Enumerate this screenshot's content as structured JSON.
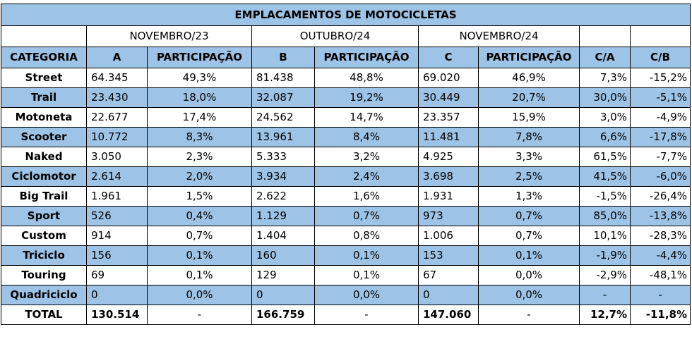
{
  "title": "EMPLACAMENTOS DE MOTOCICLETAS",
  "periods": [
    "NOVEMBRO/23",
    "OUTUBRO/24",
    "NOVEMBRO/24"
  ],
  "columns": [
    "CATEGORIA",
    "A",
    "PARTICIPAÇÃO",
    "B",
    "PARTICIPAÇÃO",
    "C",
    "PARTICIPAÇÃO",
    "C/A",
    "C/B"
  ],
  "rows": [
    {
      "cat": "Street",
      "a": "64.345",
      "pa": "49,3%",
      "b": "81.438",
      "pb": "48,8%",
      "c": "69.020",
      "pc": "46,9%",
      "ca": "7,3%",
      "cb": "-15,2%"
    },
    {
      "cat": "Trail",
      "a": "23.430",
      "pa": "18,0%",
      "b": "32.087",
      "pb": "19,2%",
      "c": "30.449",
      "pc": "20,7%",
      "ca": "30,0%",
      "cb": "-5,1%"
    },
    {
      "cat": "Motoneta",
      "a": "22.677",
      "pa": "17,4%",
      "b": "24.562",
      "pb": "14,7%",
      "c": "23.357",
      "pc": "15,9%",
      "ca": "3,0%",
      "cb": "-4,9%"
    },
    {
      "cat": "Scooter",
      "a": "10.772",
      "pa": "8,3%",
      "b": "13.961",
      "pb": "8,4%",
      "c": "11.481",
      "pc": "7,8%",
      "ca": "6,6%",
      "cb": "-17,8%"
    },
    {
      "cat": "Naked",
      "a": "3.050",
      "pa": "2,3%",
      "b": "5.333",
      "pb": "3,2%",
      "c": "4.925",
      "pc": "3,3%",
      "ca": "61,5%",
      "cb": "-7,7%"
    },
    {
      "cat": "Ciclomotor",
      "a": "2.614",
      "pa": "2,0%",
      "b": "3.934",
      "pb": "2,4%",
      "c": "3.698",
      "pc": "2,5%",
      "ca": "41,5%",
      "cb": "-6,0%"
    },
    {
      "cat": "Big Trail",
      "a": "1.961",
      "pa": "1,5%",
      "b": "2.622",
      "pb": "1,6%",
      "c": "1.931",
      "pc": "1,3%",
      "ca": "-1,5%",
      "cb": "-26,4%"
    },
    {
      "cat": "Sport",
      "a": "526",
      "pa": "0,4%",
      "b": "1.129",
      "pb": "0,7%",
      "c": "973",
      "pc": "0,7%",
      "ca": "85,0%",
      "cb": "-13,8%"
    },
    {
      "cat": "Custom",
      "a": "914",
      "pa": "0,7%",
      "b": "1.404",
      "pb": "0,8%",
      "c": "1.006",
      "pc": "0,7%",
      "ca": "10,1%",
      "cb": "-28,3%"
    },
    {
      "cat": "Triciclo",
      "a": "156",
      "pa": "0,1%",
      "b": "160",
      "pb": "0,1%",
      "c": "153",
      "pc": "0,1%",
      "ca": "-1,9%",
      "cb": "-4,4%"
    },
    {
      "cat": "Touring",
      "a": "69",
      "pa": "0,1%",
      "b": "129",
      "pb": "0,1%",
      "c": "67",
      "pc": "0,0%",
      "ca": "-2,9%",
      "cb": "-48,1%"
    },
    {
      "cat": "Quadriciclo",
      "a": "0",
      "pa": "0,0%",
      "b": "0",
      "pb": "0,0%",
      "c": "0",
      "pc": "0,0%",
      "ca": "-",
      "cb": "-"
    }
  ],
  "total": {
    "cat": "TOTAL",
    "a": "130.514",
    "pa": "-",
    "b": "166.759",
    "pb": "-",
    "c": "147.060",
    "pc": "-",
    "ca": "12,7%",
    "cb": "-11,8%"
  },
  "colors": {
    "header_blue": "#9dc3e6",
    "row_blue": "#9dc3e6",
    "row_white": "#ffffff"
  }
}
